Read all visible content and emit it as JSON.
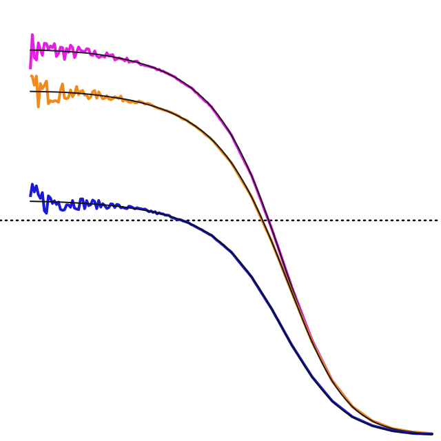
{
  "chart_data": {
    "type": "line",
    "title": "",
    "xlabel": "",
    "ylabel": "",
    "log_x": true,
    "axes_visible": false,
    "grid": false,
    "legend": "none",
    "xlim": [
      0.0,
      1.0
    ],
    "ylim": [
      0.0,
      1.0
    ],
    "reference_line": {
      "y": 0.505,
      "style": "dotted",
      "color": "#000000"
    },
    "series": [
      {
        "color": "#e51ee5",
        "fit_color": "#1a1a1a",
        "x": [
          0.0,
          0.05,
          0.1,
          0.15,
          0.2,
          0.25,
          0.3,
          0.35,
          0.4,
          0.45,
          0.5,
          0.55,
          0.6,
          0.65,
          0.7,
          0.75,
          0.8,
          0.85,
          0.9,
          0.95,
          1.0
        ],
        "y": [
          0.905,
          0.904,
          0.901,
          0.897,
          0.89,
          0.88,
          0.866,
          0.846,
          0.816,
          0.772,
          0.705,
          0.61,
          0.485,
          0.348,
          0.224,
          0.129,
          0.068,
          0.034,
          0.016,
          0.008,
          0.004
        ]
      },
      {
        "color": "#f08a18",
        "fit_color": "#1a1a1a",
        "x": [
          0.0,
          0.05,
          0.1,
          0.15,
          0.2,
          0.25,
          0.3,
          0.35,
          0.4,
          0.45,
          0.5,
          0.55,
          0.6,
          0.65,
          0.7,
          0.75,
          0.8,
          0.85,
          0.9,
          0.95,
          1.0
        ],
        "y": [
          0.808,
          0.807,
          0.805,
          0.801,
          0.795,
          0.787,
          0.775,
          0.758,
          0.733,
          0.696,
          0.64,
          0.56,
          0.455,
          0.336,
          0.22,
          0.128,
          0.068,
          0.034,
          0.016,
          0.008,
          0.004
        ]
      },
      {
        "color": "#1a1ad6",
        "fit_color": "#101010",
        "x": [
          0.0,
          0.05,
          0.1,
          0.15,
          0.2,
          0.25,
          0.3,
          0.35,
          0.4,
          0.45,
          0.5,
          0.55,
          0.6,
          0.65,
          0.7,
          0.75,
          0.8,
          0.85,
          0.9,
          0.95,
          1.0
        ],
        "y": [
          0.55,
          0.549,
          0.547,
          0.544,
          0.54,
          0.534,
          0.526,
          0.514,
          0.496,
          0.47,
          0.43,
          0.372,
          0.297,
          0.212,
          0.138,
          0.081,
          0.044,
          0.023,
          0.011,
          0.005,
          0.003
        ]
      }
    ]
  }
}
